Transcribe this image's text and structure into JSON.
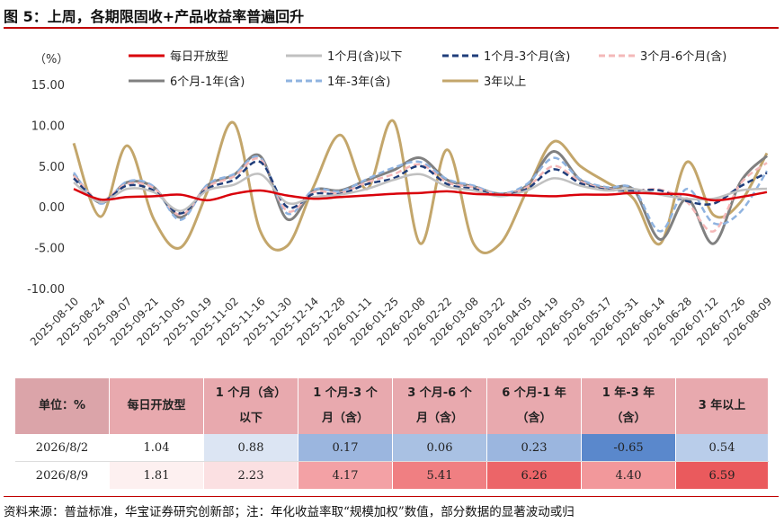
{
  "title": "图 5：上周，各期限固收+产品收益率普遍回升",
  "source": "资料来源：普益标准，华宝证券研究创新部；注：年化收益率取“规模加权”数值，部分数据的显著波动或归",
  "chart_data": {
    "type": "line",
    "unit": "（%）",
    "ylim": [
      -10,
      15
    ],
    "yticks": [
      "15.00",
      "10.00",
      "5.00",
      "0.00",
      "-5.00",
      "-10.00"
    ],
    "ytick_values": [
      15,
      10,
      5,
      0,
      -5,
      -10
    ],
    "x_labels": [
      "2025-08-10",
      "2025-08-24",
      "2025-09-07",
      "2025-09-21",
      "2025-10-05",
      "2025-10-19",
      "2025-11-02",
      "2025-11-16",
      "2025-11-30",
      "2025-12-14",
      "2025-12-28",
      "2026-01-11",
      "2026-01-25",
      "2026-02-08",
      "2026-02-22",
      "2026-03-08",
      "2026-03-22",
      "2026-04-05",
      "2026-04-19",
      "2026-05-03",
      "2026-05-17",
      "2026-05-31",
      "2026-06-14",
      "2026-06-28",
      "2026-07-12",
      "2026-07-26",
      "2026-08-09"
    ],
    "series": [
      {
        "name": "每日开放型",
        "color": "#d9000a",
        "width": 2.5,
        "dash": "",
        "values": [
          2.2,
          0.9,
          1.2,
          1.3,
          1.5,
          0.8,
          1.6,
          2.0,
          1.4,
          1.0,
          1.2,
          1.4,
          1.6,
          1.7,
          1.9,
          1.6,
          1.5,
          1.4,
          1.3,
          1.5,
          1.5,
          1.7,
          1.6,
          1.5,
          0.8,
          1.2,
          1.81
        ]
      },
      {
        "name": "1个月(含)以下",
        "color": "#c0c0c0",
        "width": 2.5,
        "dash": "",
        "values": [
          3.0,
          0.6,
          2.2,
          1.8,
          -0.5,
          2.0,
          2.7,
          4.0,
          0.5,
          1.2,
          1.5,
          2.2,
          3.3,
          4.0,
          2.5,
          2.0,
          1.3,
          2.0,
          3.5,
          2.6,
          2.0,
          2.2,
          1.5,
          1.0,
          1.0,
          2.0,
          2.23
        ]
      },
      {
        "name": "1个月-3个月(含)",
        "color": "#1f3d7a",
        "width": 2.5,
        "dash": "7,4",
        "values": [
          3.5,
          0.7,
          2.6,
          2.0,
          -0.8,
          2.2,
          3.3,
          5.5,
          0.0,
          1.6,
          1.6,
          2.8,
          3.5,
          5.0,
          2.8,
          2.2,
          1.4,
          2.2,
          4.6,
          2.9,
          2.1,
          2.0,
          2.0,
          0.7,
          0.4,
          2.5,
          4.17
        ]
      },
      {
        "name": "3个月-6个月(含)",
        "color": "#f4b8b8",
        "width": 2.5,
        "dash": "7,4",
        "values": [
          3.8,
          0.8,
          2.8,
          2.3,
          -1.0,
          2.4,
          3.7,
          5.8,
          -0.5,
          1.8,
          1.7,
          3.0,
          4.0,
          5.2,
          3.0,
          2.4,
          1.5,
          2.4,
          5.0,
          3.1,
          2.2,
          2.0,
          2.1,
          0.6,
          -3.0,
          2.8,
          5.41
        ]
      },
      {
        "name": "6个月-1年(含)",
        "color": "#808080",
        "width": 3,
        "dash": "",
        "values": [
          4.0,
          0.5,
          3.0,
          2.4,
          -1.3,
          2.6,
          3.9,
          6.2,
          -1.5,
          2.0,
          2.0,
          3.3,
          4.5,
          6.0,
          3.3,
          2.5,
          1.6,
          2.6,
          6.8,
          3.3,
          2.3,
          2.1,
          -4.0,
          1.0,
          -4.5,
          3.0,
          6.26
        ]
      },
      {
        "name": "1年-3年(含)",
        "color": "#8fb3e0",
        "width": 2.5,
        "dash": "7,4",
        "values": [
          4.2,
          0.4,
          3.1,
          2.5,
          -1.6,
          2.7,
          4.0,
          6.0,
          -0.8,
          2.1,
          1.9,
          3.4,
          4.8,
          5.5,
          3.4,
          2.6,
          1.6,
          2.8,
          6.0,
          3.4,
          2.4,
          2.2,
          -3.0,
          2.2,
          -2.0,
          -0.65,
          4.4
        ]
      },
      {
        "name": "3年以上",
        "color": "#c3a66b",
        "width": 3,
        "dash": "",
        "values": [
          7.8,
          -1.2,
          7.5,
          -1.5,
          -5.0,
          1.8,
          10.3,
          -3.0,
          -4.8,
          2.5,
          8.8,
          2.2,
          10.5,
          -4.5,
          7.0,
          -4.5,
          -4.5,
          2.0,
          8.0,
          5.0,
          3.0,
          1.0,
          -4.5,
          5.5,
          -1.0,
          0.54,
          6.59
        ]
      }
    ]
  },
  "table": {
    "headers": [
      [
        "单位：%"
      ],
      [
        "每日开放型"
      ],
      [
        "1 个月（含）",
        "以下"
      ],
      [
        "1 个月-3 个",
        "月（含）"
      ],
      [
        "3 个月-6 个",
        "月（含）"
      ],
      [
        "6 个月-1 年",
        "（含）"
      ],
      [
        "1 年-3 年",
        "（含）"
      ],
      [
        "3 年以上"
      ]
    ],
    "rows": [
      {
        "date": "2026/8/2",
        "values": [
          "1.04",
          "0.88",
          "0.17",
          "0.06",
          "0.23",
          "-0.65",
          "0.54"
        ],
        "colors": [
          "#ffffff",
          "#dce5f3",
          "#9bb6df",
          "#a9c1e3",
          "#9bb6df",
          "#5a88cc",
          "#b9cdea"
        ]
      },
      {
        "date": "2026/8/9",
        "values": [
          "1.81",
          "2.23",
          "4.17",
          "5.41",
          "6.26",
          "4.40",
          "6.59"
        ],
        "colors": [
          "#fdf0f0",
          "#fbe0e2",
          "#f3a1a5",
          "#f07f82",
          "#ec6568",
          "#f2989b",
          "#ea5a5d"
        ]
      }
    ]
  }
}
